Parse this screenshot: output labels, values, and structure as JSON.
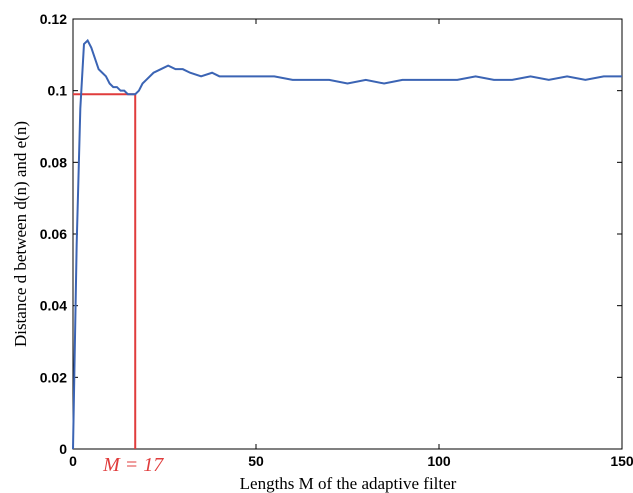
{
  "chart_data": {
    "type": "line",
    "xlabel": "Lengths M of the adaptive filter",
    "ylabel": "Distance d between d(n) and e(n)",
    "x": [
      0,
      1,
      2,
      3,
      4,
      5,
      6,
      7,
      8,
      9,
      10,
      11,
      12,
      13,
      14,
      15,
      16,
      17,
      18,
      19,
      20,
      22,
      24,
      26,
      28,
      30,
      32,
      35,
      38,
      40,
      45,
      50,
      55,
      60,
      65,
      70,
      75,
      80,
      85,
      90,
      95,
      100,
      105,
      110,
      115,
      120,
      125,
      130,
      135,
      140,
      145,
      150
    ],
    "series": [
      {
        "color": "#3b64b4",
        "values": [
          0,
          0.057,
          0.095,
          0.113,
          0.114,
          0.112,
          0.109,
          0.106,
          0.105,
          0.104,
          0.102,
          0.101,
          0.101,
          0.1,
          0.1,
          0.099,
          0.099,
          0.099,
          0.1,
          0.102,
          0.103,
          0.105,
          0.106,
          0.107,
          0.106,
          0.106,
          0.105,
          0.104,
          0.105,
          0.104,
          0.104,
          0.104,
          0.104,
          0.103,
          0.103,
          0.103,
          0.102,
          0.103,
          0.102,
          0.103,
          0.103,
          0.103,
          0.103,
          0.104,
          0.103,
          0.103,
          0.104,
          0.103,
          0.104,
          0.103,
          0.104,
          0.104
        ]
      }
    ],
    "xlim": [
      0,
      150
    ],
    "xticks": [
      0,
      50,
      100,
      150
    ],
    "ylim": [
      0,
      0.12
    ],
    "yticks": [
      0,
      0.02,
      0.04,
      0.06,
      0.08,
      0.1,
      0.12
    ],
    "annotation": {
      "text": "M = 17",
      "x": 17,
      "y": 0.099,
      "color": "#e03c3c"
    }
  }
}
